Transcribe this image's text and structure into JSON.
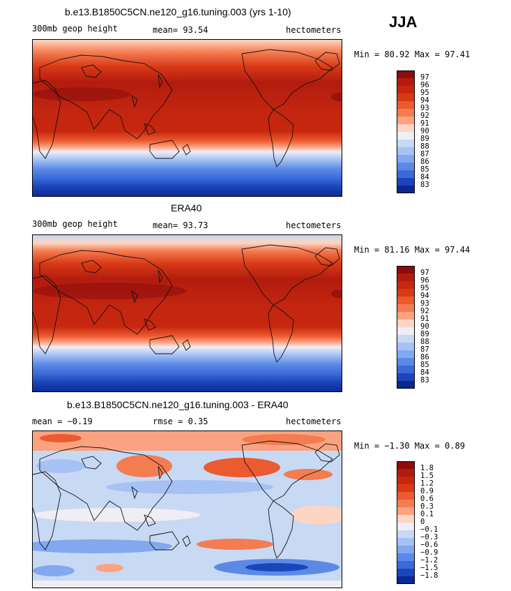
{
  "season": "JJA",
  "chart_data": [
    {
      "type": "heatmap",
      "title": "b.e13.B1850C5CN.ne120_g16.tuning.003 (yrs 1-10)",
      "left_label": "300mb geop height",
      "center_label": "mean=  93.54",
      "right_label": "hectometers",
      "minmax": "Min =  80.92 Max =  97.41",
      "colorbar_levels": [
        "97",
        "96",
        "95",
        "94",
        "93",
        "92",
        "91",
        "90",
        "89",
        "88",
        "87",
        "86",
        "85",
        "84",
        "83"
      ],
      "colorbar_colors": [
        "#8b0d0d",
        "#b21c0e",
        "#c8270f",
        "#d93a16",
        "#ec5a30",
        "#f47c51",
        "#fba381",
        "#fdd5c3",
        "#eeeef4",
        "#c7d9f3",
        "#a6c2f4",
        "#82a8ee",
        "#5b8ae6",
        "#3a6ad8",
        "#1c45bb",
        "#0b2790"
      ],
      "min": 80.92,
      "max": 97.41,
      "mean": 93.54
    },
    {
      "type": "heatmap",
      "title": "ERA40",
      "left_label": "300mb geop height",
      "center_label": "mean=  93.73",
      "right_label": "hectometers",
      "minmax": "Min =  81.16 Max =  97.44",
      "colorbar_levels": [
        "97",
        "96",
        "95",
        "94",
        "93",
        "92",
        "91",
        "90",
        "89",
        "88",
        "87",
        "86",
        "85",
        "84",
        "83"
      ],
      "colorbar_colors": [
        "#8b0d0d",
        "#b21c0e",
        "#c8270f",
        "#d93a16",
        "#ec5a30",
        "#f47c51",
        "#fba381",
        "#fdd5c3",
        "#eeeef4",
        "#c7d9f3",
        "#a6c2f4",
        "#82a8ee",
        "#5b8ae6",
        "#3a6ad8",
        "#1c45bb",
        "#0b2790"
      ],
      "min": 81.16,
      "max": 97.44,
      "mean": 93.73
    },
    {
      "type": "heatmap",
      "title": "b.e13.B1850C5CN.ne120_g16.tuning.003 - ERA40",
      "left_label": "mean =  −0.19",
      "center_label": "rmse =   0.35",
      "right_label": "hectometers",
      "minmax": "Min =  −1.30 Max =   0.89",
      "colorbar_levels": [
        "1.8",
        "1.5",
        "1.2",
        "0.9",
        "0.6",
        "0.3",
        "0.1",
        "0",
        "−0.1",
        "−0.3",
        "−0.6",
        "−0.9",
        "−1.2",
        "−1.5",
        "−1.8"
      ],
      "colorbar_colors": [
        "#8b0d0d",
        "#b21c0e",
        "#c8270f",
        "#d93a16",
        "#ec5a30",
        "#f47c51",
        "#fba381",
        "#fdd5c3",
        "#eeeef4",
        "#c7d9f3",
        "#a6c2f4",
        "#82a8ee",
        "#5b8ae6",
        "#3a6ad8",
        "#1c45bb",
        "#0b2790"
      ],
      "min": -1.3,
      "max": 0.89,
      "mean": -0.19,
      "rmse": 0.35
    }
  ]
}
